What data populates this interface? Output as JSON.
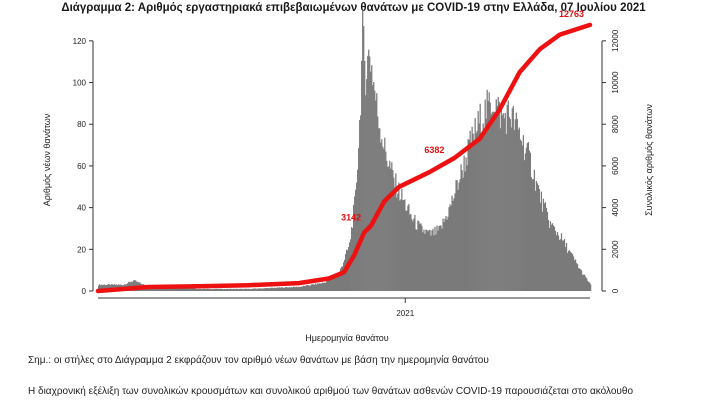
{
  "chart_data": {
    "type": "bar",
    "title": "Διάγραμμα 2: Αριθμός εργαστηριακά επιβεβαιωμένων θανάτων με COVID-19 στην Ελλάδα, 07 Ιουλίου 2021",
    "xlabel": "Ημερομηνία θανάτου",
    "ylabel": "Αριθμός νέων θανάτων",
    "y2label": "Συνολικός αριθμός θανάτων",
    "x_tick_labels": [
      {
        "label": "2021",
        "day": 306
      }
    ],
    "ylim": [
      0,
      130
    ],
    "y_ticks": [
      0,
      20,
      40,
      60,
      80,
      100,
      120
    ],
    "y2lim": [
      0,
      13000
    ],
    "y2_ticks": [
      0,
      2000,
      4000,
      6000,
      8000,
      10000,
      12000
    ],
    "grid": false,
    "x_day_range": [
      0,
      490
    ],
    "daily_deaths_profile": [
      {
        "day": 0,
        "value": 3
      },
      {
        "day": 25,
        "value": 3
      },
      {
        "day": 35,
        "value": 5
      },
      {
        "day": 45,
        "value": 3
      },
      {
        "day": 60,
        "value": 2
      },
      {
        "day": 100,
        "value": 1
      },
      {
        "day": 150,
        "value": 1
      },
      {
        "day": 200,
        "value": 2
      },
      {
        "day": 225,
        "value": 4
      },
      {
        "day": 240,
        "value": 9
      },
      {
        "day": 250,
        "value": 22
      },
      {
        "day": 256,
        "value": 45
      },
      {
        "day": 260,
        "value": 80
      },
      {
        "day": 263,
        "value": 122
      },
      {
        "day": 266,
        "value": 105
      },
      {
        "day": 270,
        "value": 115
      },
      {
        "day": 278,
        "value": 85
      },
      {
        "day": 285,
        "value": 68
      },
      {
        "day": 295,
        "value": 52
      },
      {
        "day": 305,
        "value": 42
      },
      {
        "day": 312,
        "value": 35
      },
      {
        "day": 320,
        "value": 30
      },
      {
        "day": 330,
        "value": 27
      },
      {
        "day": 340,
        "value": 29
      },
      {
        "day": 350,
        "value": 40
      },
      {
        "day": 360,
        "value": 55
      },
      {
        "day": 370,
        "value": 70
      },
      {
        "day": 380,
        "value": 82
      },
      {
        "day": 393,
        "value": 92
      },
      {
        "day": 402,
        "value": 83
      },
      {
        "day": 410,
        "value": 85
      },
      {
        "day": 420,
        "value": 75
      },
      {
        "day": 430,
        "value": 62
      },
      {
        "day": 440,
        "value": 45
      },
      {
        "day": 450,
        "value": 32
      },
      {
        "day": 460,
        "value": 26
      },
      {
        "day": 470,
        "value": 18
      },
      {
        "day": 480,
        "value": 10
      },
      {
        "day": 490,
        "value": 3
      }
    ],
    "cumulative_deaths_profile": [
      {
        "day": 0,
        "value": 0
      },
      {
        "day": 50,
        "value": 190
      },
      {
        "day": 100,
        "value": 230
      },
      {
        "day": 150,
        "value": 280
      },
      {
        "day": 200,
        "value": 380
      },
      {
        "day": 230,
        "value": 600
      },
      {
        "day": 245,
        "value": 900
      },
      {
        "day": 255,
        "value": 1700
      },
      {
        "day": 265,
        "value": 2800
      },
      {
        "day": 272,
        "value": 3142
      },
      {
        "day": 285,
        "value": 4300
      },
      {
        "day": 300,
        "value": 5000
      },
      {
        "day": 330,
        "value": 5700
      },
      {
        "day": 355,
        "value": 6382
      },
      {
        "day": 380,
        "value": 7300
      },
      {
        "day": 400,
        "value": 8700
      },
      {
        "day": 420,
        "value": 10500
      },
      {
        "day": 440,
        "value": 11600
      },
      {
        "day": 460,
        "value": 12300
      },
      {
        "day": 490,
        "value": 12763
      }
    ],
    "cumulative_annotations": [
      {
        "day": 272,
        "value": 3142,
        "label": "3142"
      },
      {
        "day": 355,
        "value": 6382,
        "label": "6382"
      },
      {
        "day": 490,
        "value": 12763,
        "label": "12763"
      }
    ],
    "series_colors": {
      "daily_bars": "#7a7a7a",
      "cumulative_line": "#ee1111"
    }
  },
  "note": "Σημ.: οι στήλες στο Διάγραμμα 2 εκφράζουν τον αριθμό νέων θανάτων με βάση την ημερομηνία θανάτου",
  "paragraph": "Η διαχρονική εξέλιξη των συνολικών κρουσμάτων και συνολικού αριθμού των θανάτων ασθενών COVID-19 παρουσιάζεται στο ακόλουθο"
}
